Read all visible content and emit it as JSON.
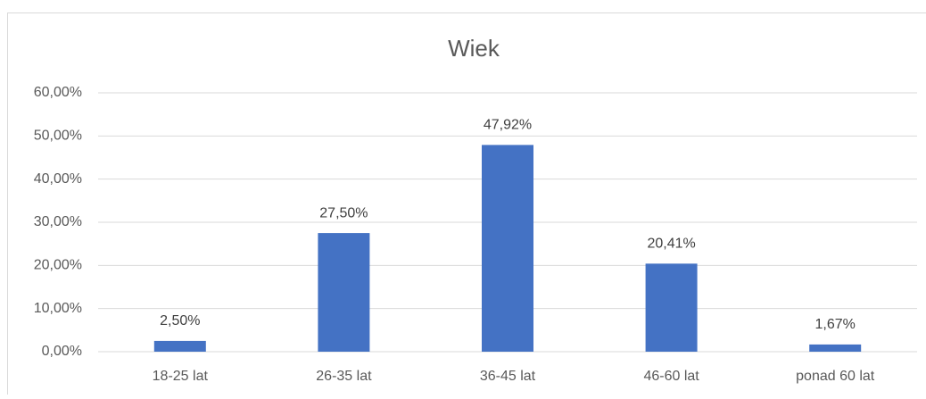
{
  "chart_data": {
    "type": "bar",
    "title": "Wiek",
    "categories": [
      "18-25 lat",
      "26-35 lat",
      "36-45 lat",
      "46-60 lat",
      "ponad 60 lat"
    ],
    "values": [
      2.5,
      27.5,
      47.92,
      20.41,
      1.67
    ],
    "value_labels": [
      "2,50%",
      "27,50%",
      "47,92%",
      "20,41%",
      "1,67%"
    ],
    "color": "#4472c4",
    "ylim": [
      0,
      60
    ],
    "yticks": [
      {
        "value": 0,
        "label": "0,00%"
      },
      {
        "value": 10,
        "label": "10,00%"
      },
      {
        "value": 20,
        "label": "20,00%"
      },
      {
        "value": 30,
        "label": "30,00%"
      },
      {
        "value": 40,
        "label": "40,00%"
      },
      {
        "value": 50,
        "label": "50,00%"
      },
      {
        "value": 60,
        "label": "60,00%"
      }
    ],
    "grid": true
  }
}
